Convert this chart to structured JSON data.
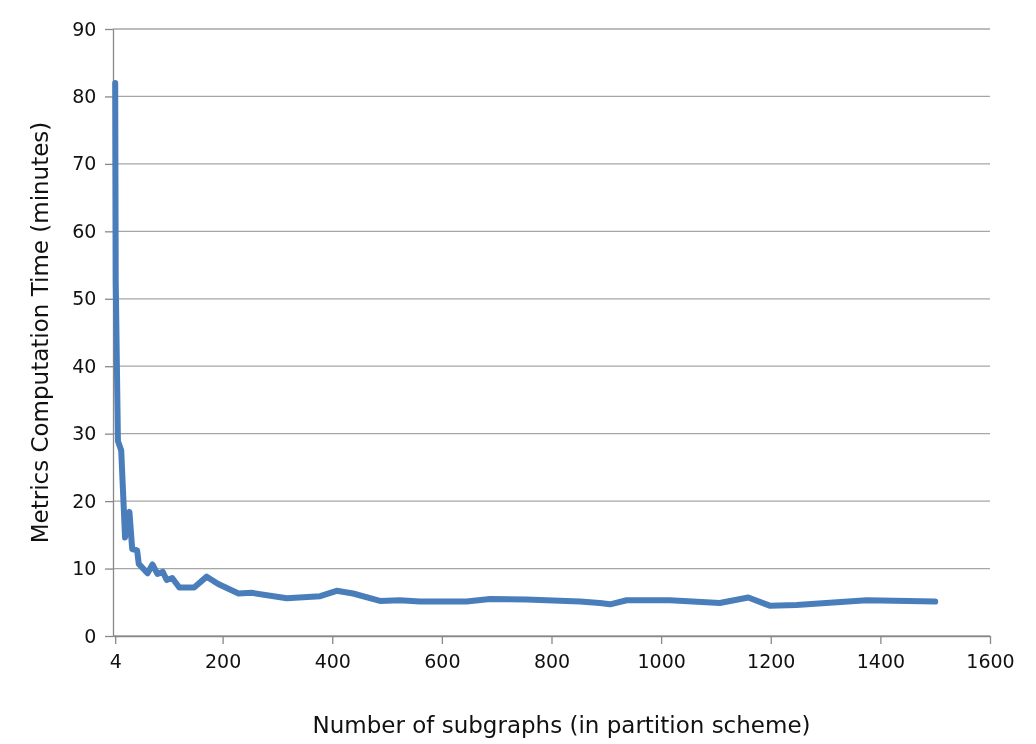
{
  "chart_data": {
    "type": "line",
    "xlabel": "Number of subgraphs (in partition scheme)",
    "ylabel": "Metrics Computation Time (minutes)",
    "xlim": [
      0,
      1600
    ],
    "xticks": [
      {
        "value": 4,
        "label": "4"
      },
      200,
      400,
      600,
      800,
      1000,
      1200,
      1400,
      1600
    ],
    "ylim": [
      0,
      90
    ],
    "yticks": [
      0,
      10,
      20,
      30,
      40,
      50,
      60,
      70,
      80,
      90
    ],
    "grid": "y",
    "marker": "none",
    "line_style": "solid",
    "series": [
      {
        "color": "#4a7ebb",
        "x": [
          4,
          5,
          9,
          15,
          22,
          30,
          35,
          44,
          47,
          63,
          72,
          81,
          91,
          98,
          108,
          121,
          148,
          171,
          192,
          229,
          253,
          317,
          378,
          408,
          438,
          487,
          523,
          560,
          645,
          688,
          754,
          852,
          888,
          907,
          937,
          1016,
          1107,
          1159,
          1198,
          1247,
          1375,
          1500
        ],
        "values": [
          82,
          52.5,
          28.9,
          27.5,
          14.6,
          18.4,
          12.9,
          12.7,
          10.7,
          9.3,
          10.6,
          9.2,
          9.5,
          8.3,
          8.6,
          7.2,
          7.2,
          8.8,
          7.7,
          6.3,
          6.4,
          5.6,
          5.9,
          6.7,
          6.3,
          5.2,
          5.3,
          5.1,
          5.1,
          5.5,
          5.4,
          5.1,
          4.9,
          4.7,
          5.3,
          5.3,
          4.9,
          5.7,
          4.5,
          4.6,
          5.3,
          5.1
        ]
      }
    ]
  }
}
